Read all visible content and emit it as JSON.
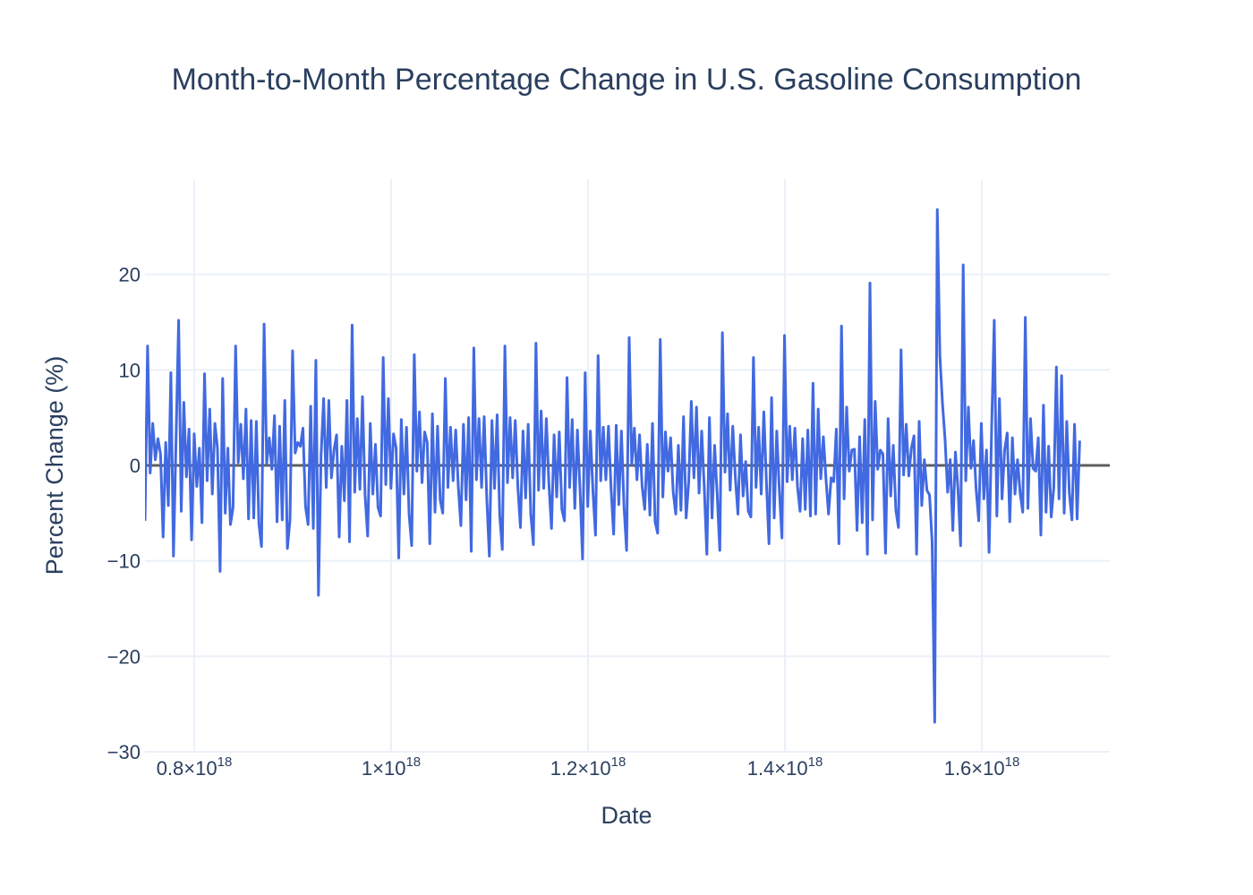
{
  "chart_data": {
    "type": "line",
    "title": "Month-to-Month Percentage Change in U.S. Gasoline Consumption",
    "xlabel": "Date",
    "ylabel": "Percent Change (%)",
    "xlim": [
      7.5e+17,
      1.73e+18
    ],
    "ylim": [
      -30,
      30
    ],
    "x_ticks": [
      {
        "value": 8e+17,
        "label": "0.8×10",
        "exp": "18"
      },
      {
        "value": 1e+18,
        "label": "1×10",
        "exp": "18"
      },
      {
        "value": 1.2e+18,
        "label": "1.2×10",
        "exp": "18"
      },
      {
        "value": 1.4e+18,
        "label": "1.4×10",
        "exp": "18"
      },
      {
        "value": 1.6e+18,
        "label": "1.6×10",
        "exp": "18"
      }
    ],
    "y_ticks": [
      {
        "value": -30,
        "label": "−30"
      },
      {
        "value": -20,
        "label": "−20"
      },
      {
        "value": -10,
        "label": "−10"
      },
      {
        "value": 0,
        "label": "0"
      },
      {
        "value": 10,
        "label": "10"
      },
      {
        "value": 20,
        "label": "20"
      }
    ],
    "grid": true,
    "zero_line": true,
    "line_color": "#4169e1",
    "zero_line_color": "#444444",
    "grid_color": "#ebf0f8",
    "series": [
      {
        "x_start": 7.5e+17,
        "x_step": 2630000000000000.0,
        "values": [
          -5.8,
          12.5,
          -0.8,
          4.4,
          0.6,
          2.8,
          1.2,
          -7.5,
          2.4,
          -4.2,
          9.7,
          -9.5,
          2.9,
          15.2,
          -4.8,
          6.6,
          -1.2,
          3.8,
          -7.8,
          3.3,
          -2.2,
          1.8,
          -6.0,
          9.6,
          -1.6,
          5.9,
          -3.0,
          4.4,
          1.8,
          -11.1,
          9.1,
          -5.0,
          1.8,
          -6.2,
          -4.4,
          12.5,
          0.3,
          4.3,
          -1.4,
          5.9,
          -5.6,
          4.7,
          -5.5,
          4.6,
          -6.1,
          -8.5,
          14.8,
          0.2,
          2.9,
          -0.4,
          5.2,
          -5.9,
          4.1,
          -5.7,
          6.8,
          -8.7,
          -5.7,
          12.0,
          1.3,
          2.4,
          2.0,
          3.9,
          -4.3,
          -6.2,
          6.2,
          -6.6,
          11.0,
          -13.6,
          1.0,
          7.0,
          -2.3,
          6.8,
          -1.3,
          1.6,
          3.2,
          -7.5,
          2.0,
          -3.7,
          6.8,
          -8.0,
          14.7,
          -2.8,
          4.9,
          -2.5,
          7.2,
          -3.1,
          -7.4,
          4.4,
          -3.0,
          2.2,
          -4.4,
          -5.3,
          11.3,
          -2.0,
          7.0,
          -2.4,
          3.3,
          1.8,
          -9.7,
          4.8,
          -3.0,
          4.0,
          -5.1,
          -8.4,
          11.6,
          -0.6,
          5.6,
          -1.8,
          3.5,
          2.4,
          -8.2,
          5.4,
          -4.9,
          4.1,
          -3.6,
          -5.0,
          9.1,
          -2.3,
          4.0,
          -1.6,
          3.7,
          -2.2,
          -6.3,
          4.3,
          -3.6,
          5.0,
          -9.0,
          12.3,
          -1.5,
          4.9,
          -2.3,
          5.1,
          -3.4,
          -9.5,
          4.7,
          -2.4,
          5.3,
          -5.2,
          -8.8,
          12.5,
          -1.8,
          5.0,
          -1.3,
          4.7,
          -2.2,
          -6.5,
          3.6,
          -3.4,
          4.3,
          -5.1,
          -8.3,
          12.8,
          -2.6,
          5.7,
          -2.4,
          4.9,
          -1.9,
          -6.6,
          3.2,
          -3.3,
          3.5,
          -4.6,
          -5.8,
          9.2,
          -2.3,
          4.8,
          -4.5,
          3.7,
          -2.4,
          -9.8,
          9.7,
          -4.3,
          3.6,
          -2.7,
          -7.3,
          11.5,
          -1.6,
          4.0,
          -1.5,
          4.1,
          -2.4,
          -7.2,
          4.2,
          -4.1,
          3.6,
          -4.3,
          -8.9,
          13.4,
          0.1,
          3.9,
          -1.5,
          3.2,
          -2.2,
          -4.6,
          2.2,
          -5.2,
          4.4,
          -5.9,
          -7.1,
          13.2,
          -3.3,
          3.5,
          -0.6,
          2.9,
          -2.8,
          -5.1,
          2.1,
          -4.7,
          5.1,
          -5.5,
          -1.7,
          6.7,
          -1.3,
          6.1,
          -2.9,
          3.6,
          -2.3,
          -9.3,
          5.0,
          -5.5,
          2.1,
          -3.1,
          -8.9,
          13.9,
          -0.7,
          5.4,
          -2.6,
          4.1,
          -1.2,
          -5.1,
          3.2,
          -3.2,
          0.4,
          -4.8,
          -5.4,
          11.3,
          -2.3,
          4.0,
          -3.0,
          5.6,
          -1.7,
          -8.2,
          7.1,
          -5.5,
          3.6,
          -2.6,
          -7.6,
          13.6,
          -1.7,
          4.1,
          -1.5,
          3.9,
          -2.2,
          -4.8,
          2.8,
          -4.6,
          3.7,
          -5.3,
          8.6,
          -5.1,
          5.9,
          -1.4,
          3.0,
          -1.4,
          -5.1,
          -1.3,
          -1.7,
          3.8,
          -8.2,
          14.6,
          -3.5,
          6.1,
          -0.6,
          1.6,
          1.7,
          -6.8,
          3.0,
          -6.0,
          4.8,
          -9.3,
          19.1,
          -5.7,
          6.7,
          -0.4,
          1.6,
          1.2,
          -9.2,
          4.9,
          -3.2,
          2.1,
          -4.7,
          -6.5,
          12.1,
          -1.0,
          4.3,
          -1.1,
          1.8,
          3.1,
          -9.3,
          4.6,
          -4.2,
          0.6,
          -2.6,
          -3.1,
          -8.0,
          -26.9,
          26.8,
          11.5,
          6.5,
          2.7,
          -2.8,
          0.6,
          -6.8,
          1.4,
          -2.5,
          -8.4,
          21.0,
          -1.6,
          6.1,
          -0.3,
          2.6,
          -2.5,
          -5.8,
          4.4,
          -3.5,
          1.6,
          -9.1,
          4.0,
          15.2,
          -5.3,
          7.0,
          -3.5,
          1.6,
          3.4,
          -5.9,
          2.9,
          -3.0,
          0.6,
          -2.9,
          -4.9,
          15.5,
          -4.5,
          4.9,
          -0.3,
          -0.6,
          2.9,
          -7.3,
          6.3,
          -4.9,
          2.0,
          -5.4,
          -2.3,
          10.3,
          -3.5,
          9.4,
          -5.0,
          4.6,
          -2.9,
          -5.7,
          4.3,
          -5.6,
          2.6
        ]
      }
    ]
  }
}
